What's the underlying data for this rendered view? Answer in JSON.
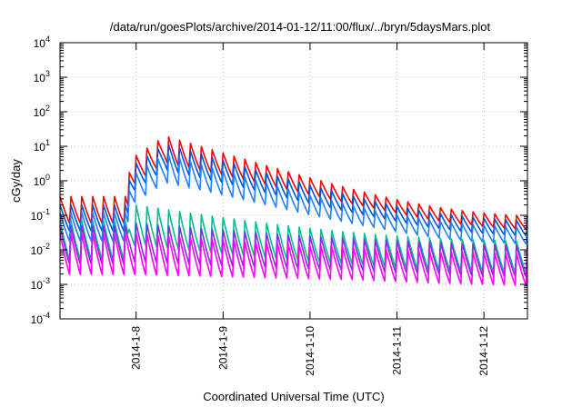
{
  "chart_data": {
    "type": "line",
    "title": "/data/run/goesPlots/archive/2014-01-12/11:00/flux/../bryn/5daysMars.plot",
    "xlabel": "Coordinated Universal Time (UTC)",
    "ylabel": "cGy/day",
    "yscale": "log",
    "ylim": [
      0.0001,
      10000
    ],
    "xlim": [
      "2014-01-07 03:00",
      "2014-01-12 12:00"
    ],
    "grid": true,
    "x_ticks": [
      "2014-1-8",
      "2014-1-9",
      "2014-1-10",
      "2014-1-11",
      "2014-1-12"
    ],
    "y_ticks": [
      {
        "base": "10",
        "exp": "-4"
      },
      {
        "base": "10",
        "exp": "-3"
      },
      {
        "base": "10",
        "exp": "-2"
      },
      {
        "base": "10",
        "exp": "-1"
      },
      {
        "base": "10",
        "exp": "0"
      },
      {
        "base": "10",
        "exp": "1"
      },
      {
        "base": "10",
        "exp": "2"
      },
      {
        "base": "10",
        "exp": "3"
      },
      {
        "base": "10",
        "exp": "4"
      }
    ],
    "oscillation_period_hours": 3,
    "event_onset": "2014-01-07 22:00",
    "series": [
      {
        "color": "#ff0000",
        "baseline_peak": 0.35,
        "baseline_trough": 0.05,
        "event_peak": 20,
        "event_peak_time": "2014-01-08 08:00",
        "end_peak": 0.08,
        "end_trough": 0.03,
        "decay_hours": 14
      },
      {
        "color": "#0055d4",
        "baseline_peak": 0.2,
        "baseline_trough": 0.03,
        "event_peak": 12,
        "event_peak_time": "2014-01-08 08:00",
        "end_peak": 0.06,
        "end_trough": 0.02,
        "decay_hours": 14
      },
      {
        "color": "#2080ff",
        "baseline_peak": 0.12,
        "baseline_trough": 0.015,
        "event_peak": 6,
        "event_peak_time": "2014-01-08 08:00",
        "end_peak": 0.04,
        "end_trough": 0.012,
        "decay_hours": 14
      },
      {
        "color": "#00c090",
        "baseline_peak": 0.07,
        "baseline_trough": 0.004,
        "event_peak": 0.2,
        "event_peak_time": "2014-01-08 00:00",
        "end_peak": 0.015,
        "end_trough": 0.0015,
        "decay_hours": 25
      },
      {
        "color": "#8a2be2",
        "baseline_peak": 0.05,
        "baseline_trough": 0.003,
        "event_peak": 0.06,
        "event_peak_time": "2014-01-08 00:00",
        "end_peak": 0.01,
        "end_trough": 0.001,
        "decay_hours": 40
      },
      {
        "color": "#ff00ff",
        "baseline_peak": 0.03,
        "baseline_trough": 0.0015,
        "event_peak": 0.03,
        "event_peak_time": "2014-01-08 00:00",
        "end_peak": 0.006,
        "end_trough": 0.0006,
        "decay_hours": 40
      }
    ]
  }
}
